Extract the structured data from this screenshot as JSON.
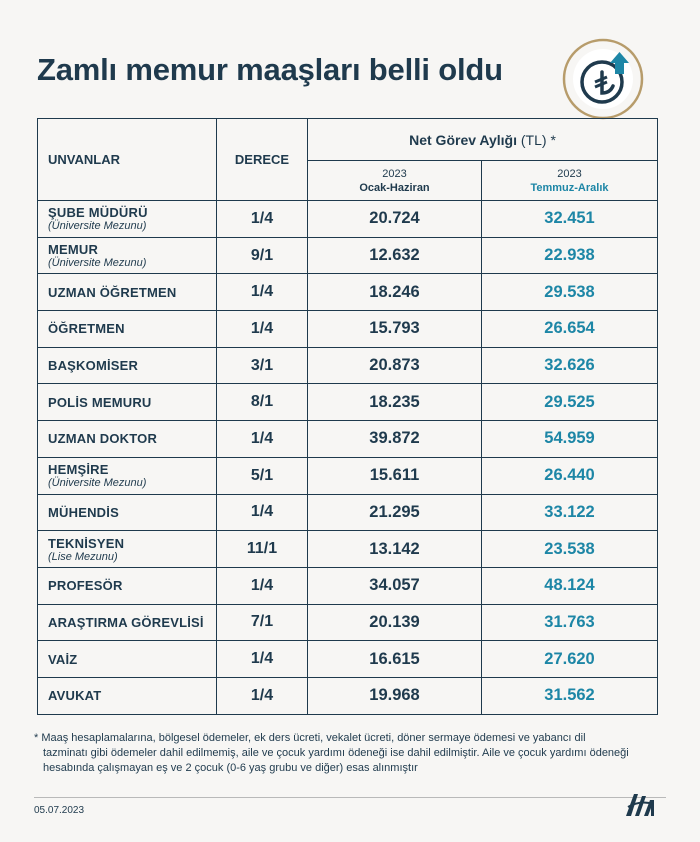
{
  "title": "Zamlı memur maaşları belli oldu",
  "badge_icon": "lira-increase-icon",
  "colors": {
    "primary": "#1f3a4d",
    "accent": "#1d86a6",
    "gold": "#b79c6b"
  },
  "table": {
    "col_unvan": "UNVANLAR",
    "col_derece": "DERECE",
    "col_net": "Net Görev Aylığı",
    "col_net_unit": "(TL) *",
    "period1_year": "2023",
    "period1_label": "Ocak-Haziran",
    "period2_year": "2023",
    "period2_label": "Temmuz-Aralık",
    "rows": [
      {
        "title": "ŞUBE MÜDÜRÜ",
        "sub": "(Üniversite Mezunu)",
        "grade": "1/4",
        "old": "20.724",
        "new": "32.451"
      },
      {
        "title": "MEMUR",
        "sub": "(Üniversite Mezunu)",
        "grade": "9/1",
        "old": "12.632",
        "new": "22.938"
      },
      {
        "title": "UZMAN ÖĞRETMEN",
        "sub": "",
        "grade": "1/4",
        "old": "18.246",
        "new": "29.538"
      },
      {
        "title": "ÖĞRETMEN",
        "sub": "",
        "grade": "1/4",
        "old": "15.793",
        "new": "26.654"
      },
      {
        "title": "BAŞKOMİSER",
        "sub": "",
        "grade": "3/1",
        "old": "20.873",
        "new": "32.626"
      },
      {
        "title": "POLİS MEMURU",
        "sub": "",
        "grade": "8/1",
        "old": "18.235",
        "new": "29.525"
      },
      {
        "title": "UZMAN DOKTOR",
        "sub": "",
        "grade": "1/4",
        "old": "39.872",
        "new": "54.959"
      },
      {
        "title": "HEMŞİRE",
        "sub": "(Üniversite Mezunu)",
        "grade": "5/1",
        "old": "15.611",
        "new": "26.440"
      },
      {
        "title": "MÜHENDİS",
        "sub": "",
        "grade": "1/4",
        "old": "21.295",
        "new": "33.122"
      },
      {
        "title": "TEKNİSYEN",
        "sub": "(Lise Mezunu)",
        "grade": "11/1",
        "old": "13.142",
        "new": "23.538"
      },
      {
        "title": "PROFESÖR",
        "sub": "",
        "grade": "1/4",
        "old": "34.057",
        "new": "48.124"
      },
      {
        "title": "ARAŞTIRMA GÖREVLİSİ",
        "sub": "",
        "grade": "7/1",
        "old": "20.139",
        "new": "31.763"
      },
      {
        "title": "VAİZ",
        "sub": "",
        "grade": "1/4",
        "old": "16.615",
        "new": "27.620"
      },
      {
        "title": "AVUKAT",
        "sub": "",
        "grade": "1/4",
        "old": "19.968",
        "new": "31.562"
      }
    ]
  },
  "footnote_first": "* Maaş hesaplamalarına, bölgesel ödemeler, ek ders ücreti, vekalet ücreti, döner sermaye ödemesi ve yabancı dil",
  "footnote_rest": "tazminatı gibi ödemeler dahil edilmemiş, aile ve çocuk yardımı ödeneği ise dahil edilmiştir. Aile ve çocuk yardımı ödeneği hesabında çalışmayan eş ve 2 çocuk (0-6 yaş grubu ve diğer) esas alınmıştır",
  "date": "05.07.2023",
  "logo_icon": "aa-logo-icon"
}
